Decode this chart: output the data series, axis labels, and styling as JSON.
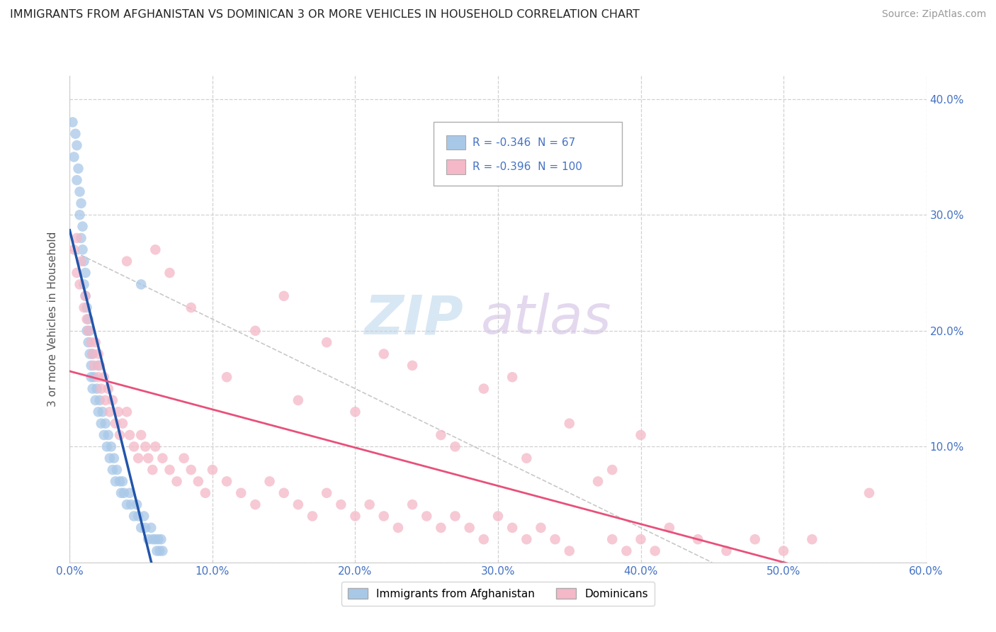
{
  "title": "IMMIGRANTS FROM AFGHANISTAN VS DOMINICAN 3 OR MORE VEHICLES IN HOUSEHOLD CORRELATION CHART",
  "source": "Source: ZipAtlas.com",
  "ylabel": "3 or more Vehicles in Household",
  "xlim": [
    0.0,
    0.6
  ],
  "ylim": [
    0.0,
    0.42
  ],
  "xticks": [
    0.0,
    0.1,
    0.2,
    0.3,
    0.4,
    0.5,
    0.6
  ],
  "yticks": [
    0.0,
    0.1,
    0.2,
    0.3,
    0.4
  ],
  "legend_r1": "-0.346",
  "legend_n1": "67",
  "legend_r2": "-0.396",
  "legend_n2": "100",
  "color_afghanistan": "#a8c8e8",
  "color_dominican": "#f4b8c8",
  "color_line_afghanistan": "#2255aa",
  "color_line_dominican": "#e8507a",
  "color_grid": "#cccccc",
  "background_color": "#ffffff",
  "afghanistan_x": [
    0.002,
    0.003,
    0.004,
    0.005,
    0.005,
    0.006,
    0.007,
    0.007,
    0.008,
    0.008,
    0.009,
    0.009,
    0.01,
    0.01,
    0.011,
    0.011,
    0.012,
    0.012,
    0.013,
    0.013,
    0.014,
    0.014,
    0.015,
    0.015,
    0.016,
    0.016,
    0.017,
    0.018,
    0.019,
    0.02,
    0.02,
    0.021,
    0.022,
    0.023,
    0.024,
    0.025,
    0.026,
    0.027,
    0.028,
    0.029,
    0.03,
    0.031,
    0.032,
    0.033,
    0.035,
    0.036,
    0.037,
    0.038,
    0.04,
    0.042,
    0.043,
    0.045,
    0.047,
    0.048,
    0.05,
    0.052,
    0.053,
    0.055,
    0.057,
    0.058,
    0.06,
    0.061,
    0.062,
    0.063,
    0.064,
    0.065,
    0.05
  ],
  "afghanistan_y": [
    0.38,
    0.35,
    0.37,
    0.33,
    0.36,
    0.34,
    0.32,
    0.3,
    0.31,
    0.28,
    0.29,
    0.27,
    0.26,
    0.24,
    0.25,
    0.23,
    0.22,
    0.2,
    0.21,
    0.19,
    0.18,
    0.2,
    0.17,
    0.16,
    0.18,
    0.15,
    0.16,
    0.14,
    0.15,
    0.13,
    0.17,
    0.14,
    0.12,
    0.13,
    0.11,
    0.12,
    0.1,
    0.11,
    0.09,
    0.1,
    0.08,
    0.09,
    0.07,
    0.08,
    0.07,
    0.06,
    0.07,
    0.06,
    0.05,
    0.06,
    0.05,
    0.04,
    0.05,
    0.04,
    0.03,
    0.04,
    0.03,
    0.02,
    0.03,
    0.02,
    0.02,
    0.01,
    0.02,
    0.01,
    0.02,
    0.01,
    0.24
  ],
  "dominican_x": [
    0.003,
    0.005,
    0.007,
    0.008,
    0.01,
    0.011,
    0.012,
    0.013,
    0.015,
    0.016,
    0.017,
    0.018,
    0.02,
    0.021,
    0.022,
    0.024,
    0.025,
    0.027,
    0.028,
    0.03,
    0.032,
    0.034,
    0.035,
    0.037,
    0.04,
    0.042,
    0.045,
    0.048,
    0.05,
    0.053,
    0.055,
    0.058,
    0.06,
    0.065,
    0.07,
    0.075,
    0.08,
    0.085,
    0.09,
    0.095,
    0.1,
    0.11,
    0.12,
    0.13,
    0.14,
    0.15,
    0.16,
    0.17,
    0.18,
    0.19,
    0.2,
    0.21,
    0.22,
    0.23,
    0.24,
    0.25,
    0.26,
    0.27,
    0.28,
    0.29,
    0.3,
    0.31,
    0.32,
    0.33,
    0.34,
    0.35,
    0.38,
    0.39,
    0.4,
    0.41,
    0.42,
    0.44,
    0.46,
    0.48,
    0.5,
    0.52,
    0.005,
    0.02,
    0.04,
    0.07,
    0.11,
    0.16,
    0.2,
    0.26,
    0.32,
    0.38,
    0.35,
    0.29,
    0.24,
    0.18,
    0.13,
    0.085,
    0.06,
    0.37,
    0.27,
    0.31,
    0.15,
    0.22,
    0.4,
    0.56
  ],
  "dominican_y": [
    0.27,
    0.25,
    0.24,
    0.26,
    0.22,
    0.23,
    0.21,
    0.2,
    0.19,
    0.18,
    0.17,
    0.19,
    0.16,
    0.17,
    0.15,
    0.16,
    0.14,
    0.15,
    0.13,
    0.14,
    0.12,
    0.13,
    0.11,
    0.12,
    0.13,
    0.11,
    0.1,
    0.09,
    0.11,
    0.1,
    0.09,
    0.08,
    0.1,
    0.09,
    0.08,
    0.07,
    0.09,
    0.08,
    0.07,
    0.06,
    0.08,
    0.07,
    0.06,
    0.05,
    0.07,
    0.06,
    0.05,
    0.04,
    0.06,
    0.05,
    0.04,
    0.05,
    0.04,
    0.03,
    0.05,
    0.04,
    0.03,
    0.04,
    0.03,
    0.02,
    0.04,
    0.03,
    0.02,
    0.03,
    0.02,
    0.01,
    0.02,
    0.01,
    0.02,
    0.01,
    0.03,
    0.02,
    0.01,
    0.02,
    0.01,
    0.02,
    0.28,
    0.18,
    0.26,
    0.25,
    0.16,
    0.14,
    0.13,
    0.11,
    0.09,
    0.08,
    0.12,
    0.15,
    0.17,
    0.19,
    0.2,
    0.22,
    0.27,
    0.07,
    0.1,
    0.16,
    0.23,
    0.18,
    0.11,
    0.06
  ]
}
